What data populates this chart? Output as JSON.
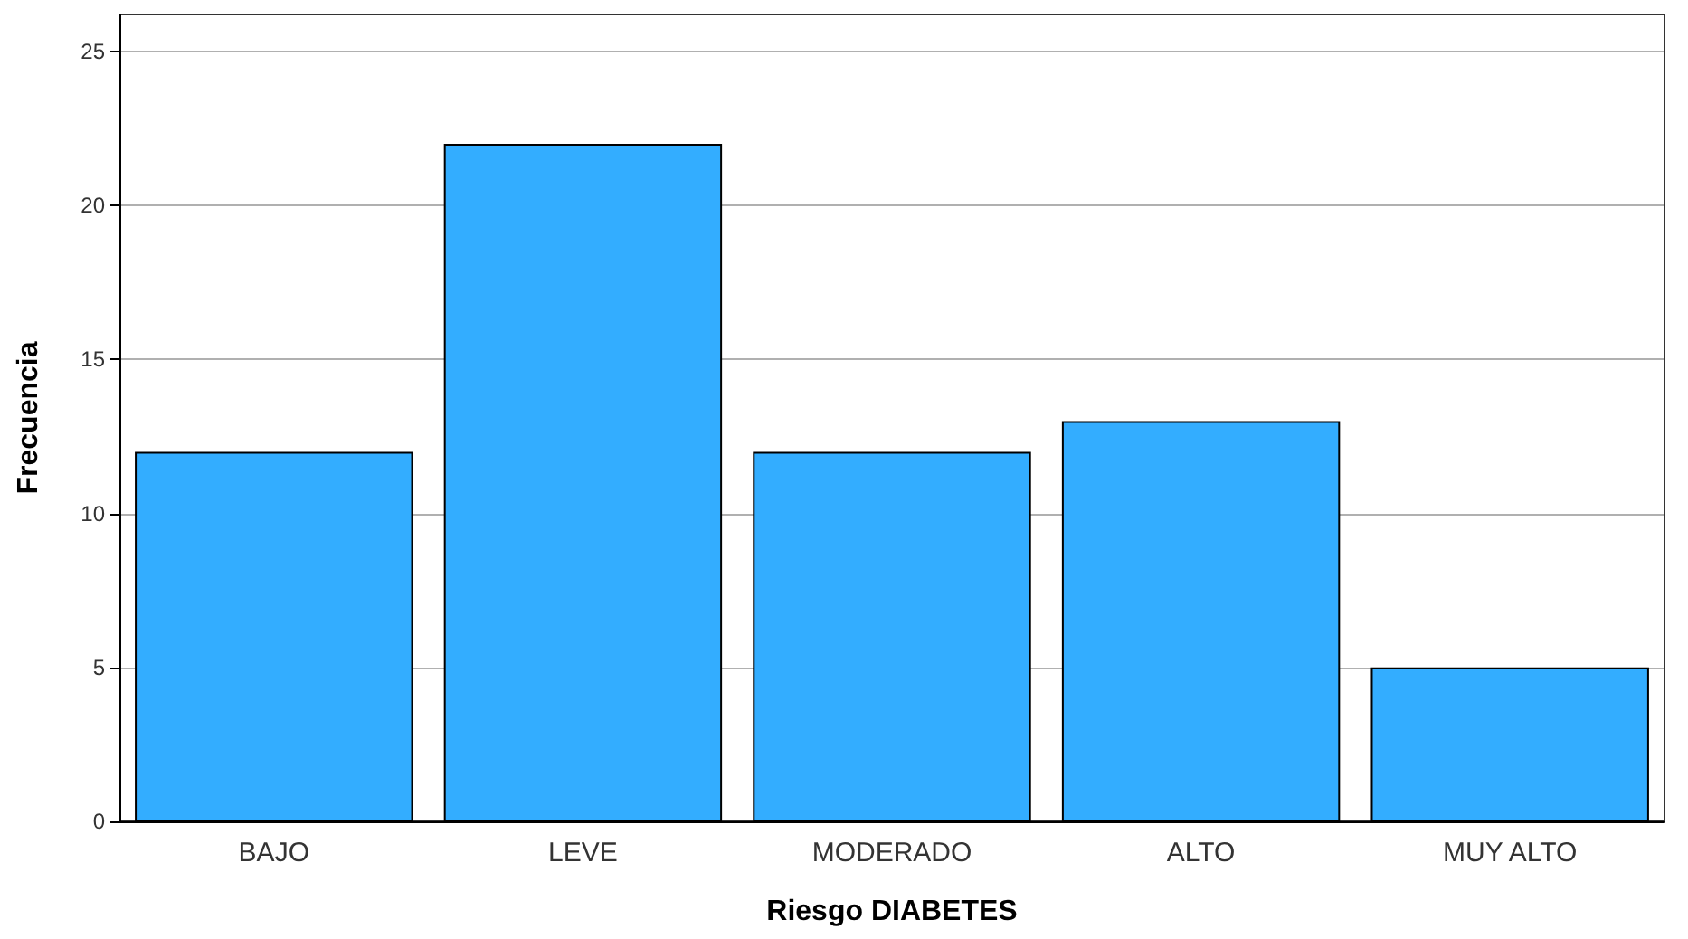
{
  "chart_data": {
    "type": "bar",
    "xlabel": "Riesgo DIABETES",
    "ylabel": "Frecuencia",
    "categories": [
      "BAJO",
      "LEVE",
      "MODERADO",
      "ALTO",
      "MUY ALTO"
    ],
    "values": [
      12,
      22,
      12,
      13,
      5
    ],
    "color": "#33adff",
    "ylim": [
      0,
      26.2
    ],
    "yticks": [
      0,
      5,
      10,
      15,
      20,
      25
    ],
    "grid": "y"
  }
}
